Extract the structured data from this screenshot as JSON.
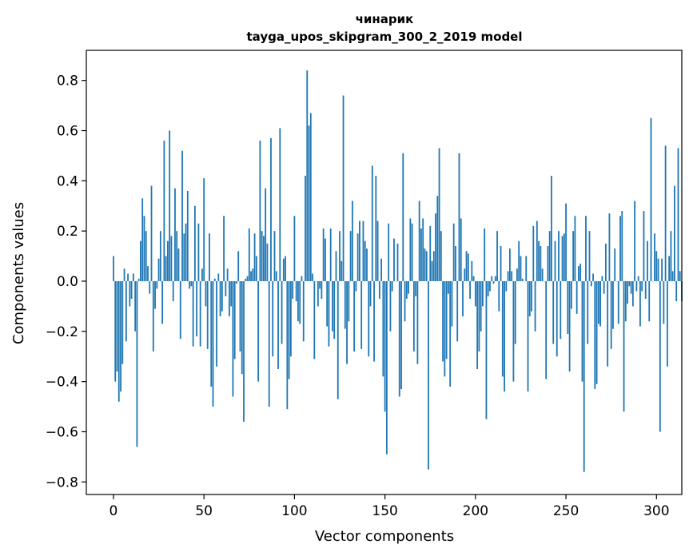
{
  "chart_data": {
    "type": "bar",
    "title_lines": [
      "чинарик",
      "tayga_upos_skipgram_300_2_2019 model"
    ],
    "xlabel": "Vector components",
    "ylabel": "Components values",
    "xlim": [
      -15,
      314
    ],
    "ylim": [
      -0.85,
      0.92
    ],
    "xticks": [
      0,
      50,
      100,
      150,
      200,
      250,
      300
    ],
    "xtick_labels": [
      "0",
      "50",
      "100",
      "150",
      "200",
      "250",
      "300"
    ],
    "yticks": [
      -0.8,
      -0.6,
      -0.4,
      -0.2,
      0.0,
      0.2,
      0.4,
      0.6,
      0.8
    ],
    "ytick_labels": [
      "−0.8",
      "−0.6",
      "−0.4",
      "−0.2",
      "0.0",
      "0.2",
      "0.4",
      "0.6",
      "0.8"
    ],
    "bar_color": "#1f77b4",
    "x_start": 0,
    "values": [
      0.1,
      -0.4,
      -0.36,
      -0.48,
      -0.44,
      -0.33,
      0.05,
      -0.24,
      0.03,
      -0.1,
      -0.07,
      0.03,
      -0.2,
      -0.66,
      0.01,
      0.16,
      0.33,
      0.26,
      0.2,
      0.06,
      -0.05,
      0.38,
      -0.28,
      -0.11,
      -0.03,
      0.09,
      0.2,
      -0.17,
      0.56,
      0.1,
      0.16,
      0.6,
      0.18,
      -0.08,
      0.37,
      0.2,
      0.13,
      -0.23,
      0.52,
      0.19,
      0.23,
      0.36,
      -0.03,
      -0.02,
      -0.26,
      0.3,
      -0.22,
      0.23,
      -0.26,
      0.05,
      0.41,
      -0.1,
      -0.27,
      0.19,
      -0.42,
      -0.5,
      0.01,
      -0.34,
      0.03,
      -0.14,
      -0.12,
      0.26,
      -0.06,
      0.05,
      -0.14,
      -0.1,
      -0.46,
      -0.31,
      -0.01,
      0.12,
      -0.28,
      -0.37,
      -0.56,
      0.01,
      0.02,
      0.21,
      0.04,
      0.05,
      0.19,
      0.1,
      -0.4,
      0.56,
      0.2,
      0.18,
      0.37,
      0.15,
      -0.5,
      0.57,
      -0.3,
      0.2,
      0.04,
      -0.35,
      0.61,
      -0.25,
      0.09,
      0.1,
      -0.51,
      -0.39,
      -0.3,
      -0.07,
      0.26,
      -0.08,
      -0.16,
      -0.17,
      0.02,
      -0.24,
      0.42,
      0.84,
      0.62,
      0.67,
      0.03,
      -0.31,
      0.0,
      -0.1,
      -0.03,
      -0.07,
      0.21,
      0.17,
      -0.18,
      -0.26,
      0.21,
      -0.2,
      -0.23,
      0.12,
      -0.47,
      0.2,
      0.08,
      0.74,
      -0.19,
      -0.33,
      -0.16,
      0.2,
      0.32,
      -0.28,
      -0.04,
      0.19,
      0.24,
      -0.27,
      0.24,
      0.16,
      0.13,
      -0.3,
      -0.1,
      0.46,
      -0.32,
      0.42,
      0.24,
      -0.07,
      0.09,
      -0.38,
      -0.52,
      -0.69,
      0.23,
      -0.2,
      -0.04,
      0.17,
      0.0,
      0.15,
      -0.46,
      -0.43,
      0.51,
      -0.16,
      -0.07,
      -0.05,
      0.25,
      0.23,
      -0.28,
      -0.06,
      -0.33,
      0.32,
      0.21,
      0.25,
      0.13,
      0.12,
      -0.75,
      0.22,
      0.08,
      0.12,
      0.27,
      0.34,
      0.53,
      0.2,
      -0.32,
      -0.38,
      -0.31,
      -0.05,
      -0.42,
      -0.18,
      0.23,
      0.14,
      -0.24,
      0.51,
      0.25,
      -0.14,
      0.05,
      0.12,
      0.11,
      -0.07,
      0.08,
      0.02,
      -0.1,
      -0.35,
      -0.28,
      -0.2,
      -0.1,
      0.21,
      -0.55,
      -0.06,
      -0.04,
      0.02,
      -0.01,
      0.02,
      0.2,
      -0.12,
      0.14,
      -0.38,
      -0.44,
      -0.04,
      0.04,
      0.13,
      0.04,
      -0.4,
      -0.25,
      0.05,
      0.16,
      0.1,
      0.01,
      0.0,
      0.1,
      -0.44,
      -0.14,
      -0.12,
      0.22,
      -0.2,
      0.24,
      0.16,
      0.14,
      0.05,
      0.0,
      -0.39,
      0.14,
      0.2,
      0.42,
      -0.25,
      0.16,
      -0.3,
      0.2,
      -0.23,
      0.18,
      0.19,
      0.31,
      -0.21,
      -0.36,
      -0.11,
      0.2,
      0.26,
      -0.13,
      0.06,
      0.07,
      -0.4,
      -0.76,
      0.26,
      -0.25,
      0.2,
      -0.02,
      0.03,
      -0.43,
      -0.41,
      -0.17,
      -0.18,
      0.02,
      -0.05,
      0.15,
      -0.34,
      0.27,
      -0.27,
      -0.19,
      0.13,
      0.0,
      -0.17,
      0.26,
      0.28,
      -0.52,
      -0.16,
      -0.09,
      -0.02,
      -0.05,
      -0.1,
      0.32,
      -0.04,
      0.02,
      -0.18,
      -0.04,
      0.28,
      -0.07,
      0.16,
      -0.16,
      0.65,
      0.0,
      0.19,
      0.12,
      0.09,
      -0.6,
      0.09,
      -0.17,
      0.54,
      -0.34,
      0.1,
      0.2,
      0.04,
      0.38,
      -0.08,
      0.53,
      0.04,
      -0.08
    ]
  }
}
